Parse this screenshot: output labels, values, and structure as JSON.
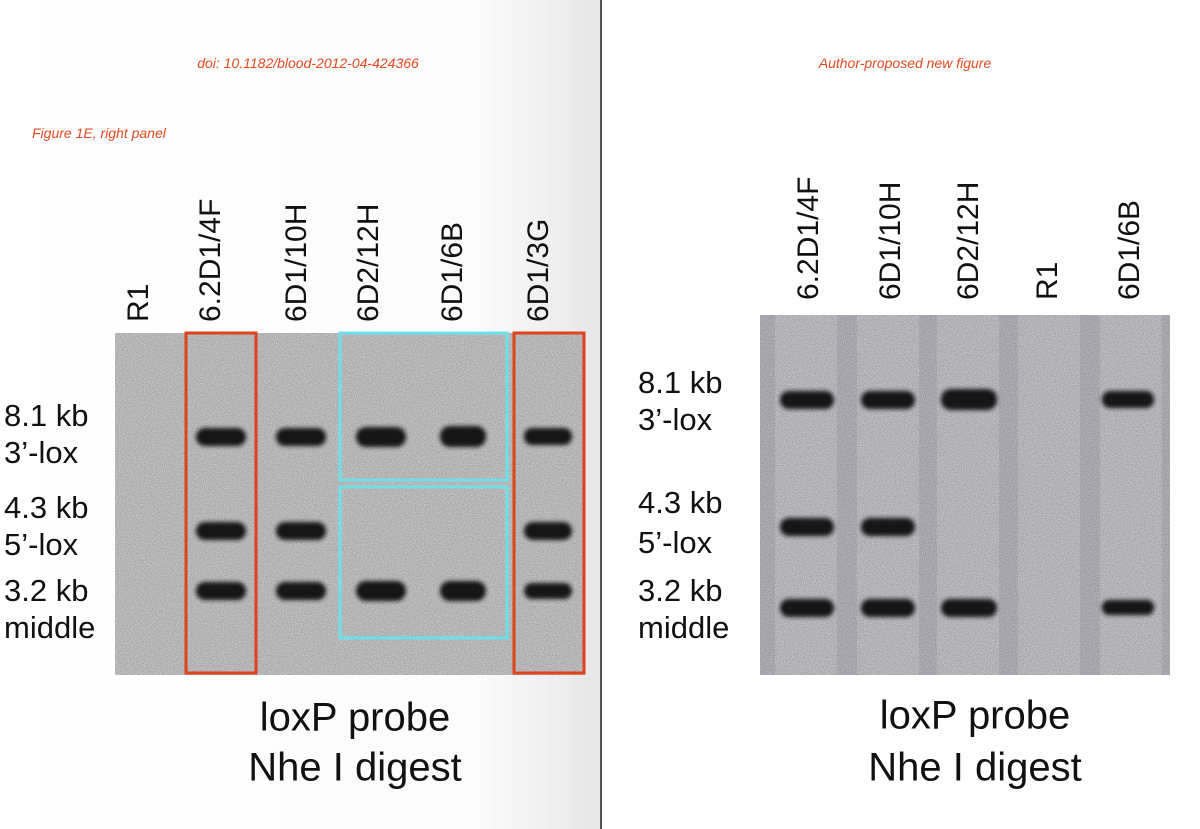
{
  "left": {
    "doi": "doi: 10.1182/blood-2012-04-424366",
    "panel_label": "Figure 1E, right panel",
    "lanes": [
      "R1",
      "6.2D1/4F",
      "6D1/10H",
      "6D2/12H",
      "6D1/6B",
      "6D1/3G"
    ],
    "band_labels": [
      [
        "8.1 kb",
        "3’-lox"
      ],
      [
        "4.3 kb",
        "5’-lox"
      ],
      [
        "3.2 kb",
        "middle"
      ]
    ],
    "caption": [
      "loxP probe",
      "Nhe I digest"
    ]
  },
  "right": {
    "header": "Author-proposed new figure",
    "lanes": [
      "6.2D1/4F",
      "6D1/10H",
      "6D2/12H",
      "R1",
      "6D1/6B"
    ],
    "band_labels": [
      [
        "8.1 kb",
        "3’-lox"
      ],
      [
        "4.3 kb",
        "5’-lox"
      ],
      [
        "3.2 kb",
        "middle"
      ]
    ],
    "caption": [
      "loxP probe",
      "Nhe I digest"
    ]
  }
}
